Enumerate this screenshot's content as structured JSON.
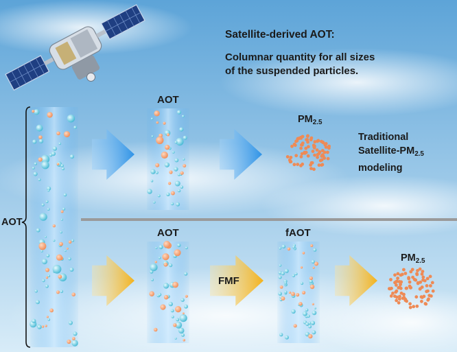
{
  "header": {
    "title": "Satellite-derived AOT:",
    "description_line1": "Columnar quantity for all sizes",
    "description_line2": "of the suspended particles."
  },
  "left_column": {
    "label": "AOT"
  },
  "top_row": {
    "column_label": "AOT",
    "pm_label_main": "PM",
    "pm_label_sub": "2.5",
    "method_line1": "Traditional",
    "method_line2_main": "Satellite-PM",
    "method_line2_sub": "2.5",
    "method_line3": "modeling"
  },
  "bottom_row": {
    "column_label": "AOT",
    "fmf_label": "FMF",
    "fine_column_label": "fAOT",
    "pm_label_main": "PM",
    "pm_label_sub": "2.5"
  },
  "colors": {
    "sky_top": "#5da4d8",
    "sky_bottom": "#d8ecf8",
    "blue_arrow": "#2f93e6",
    "yellow_arrow": "#f3b21c",
    "fine_particle": "#42b7d3",
    "coarse_particle": "#ee8a55",
    "divider": "#9a9a9a"
  }
}
